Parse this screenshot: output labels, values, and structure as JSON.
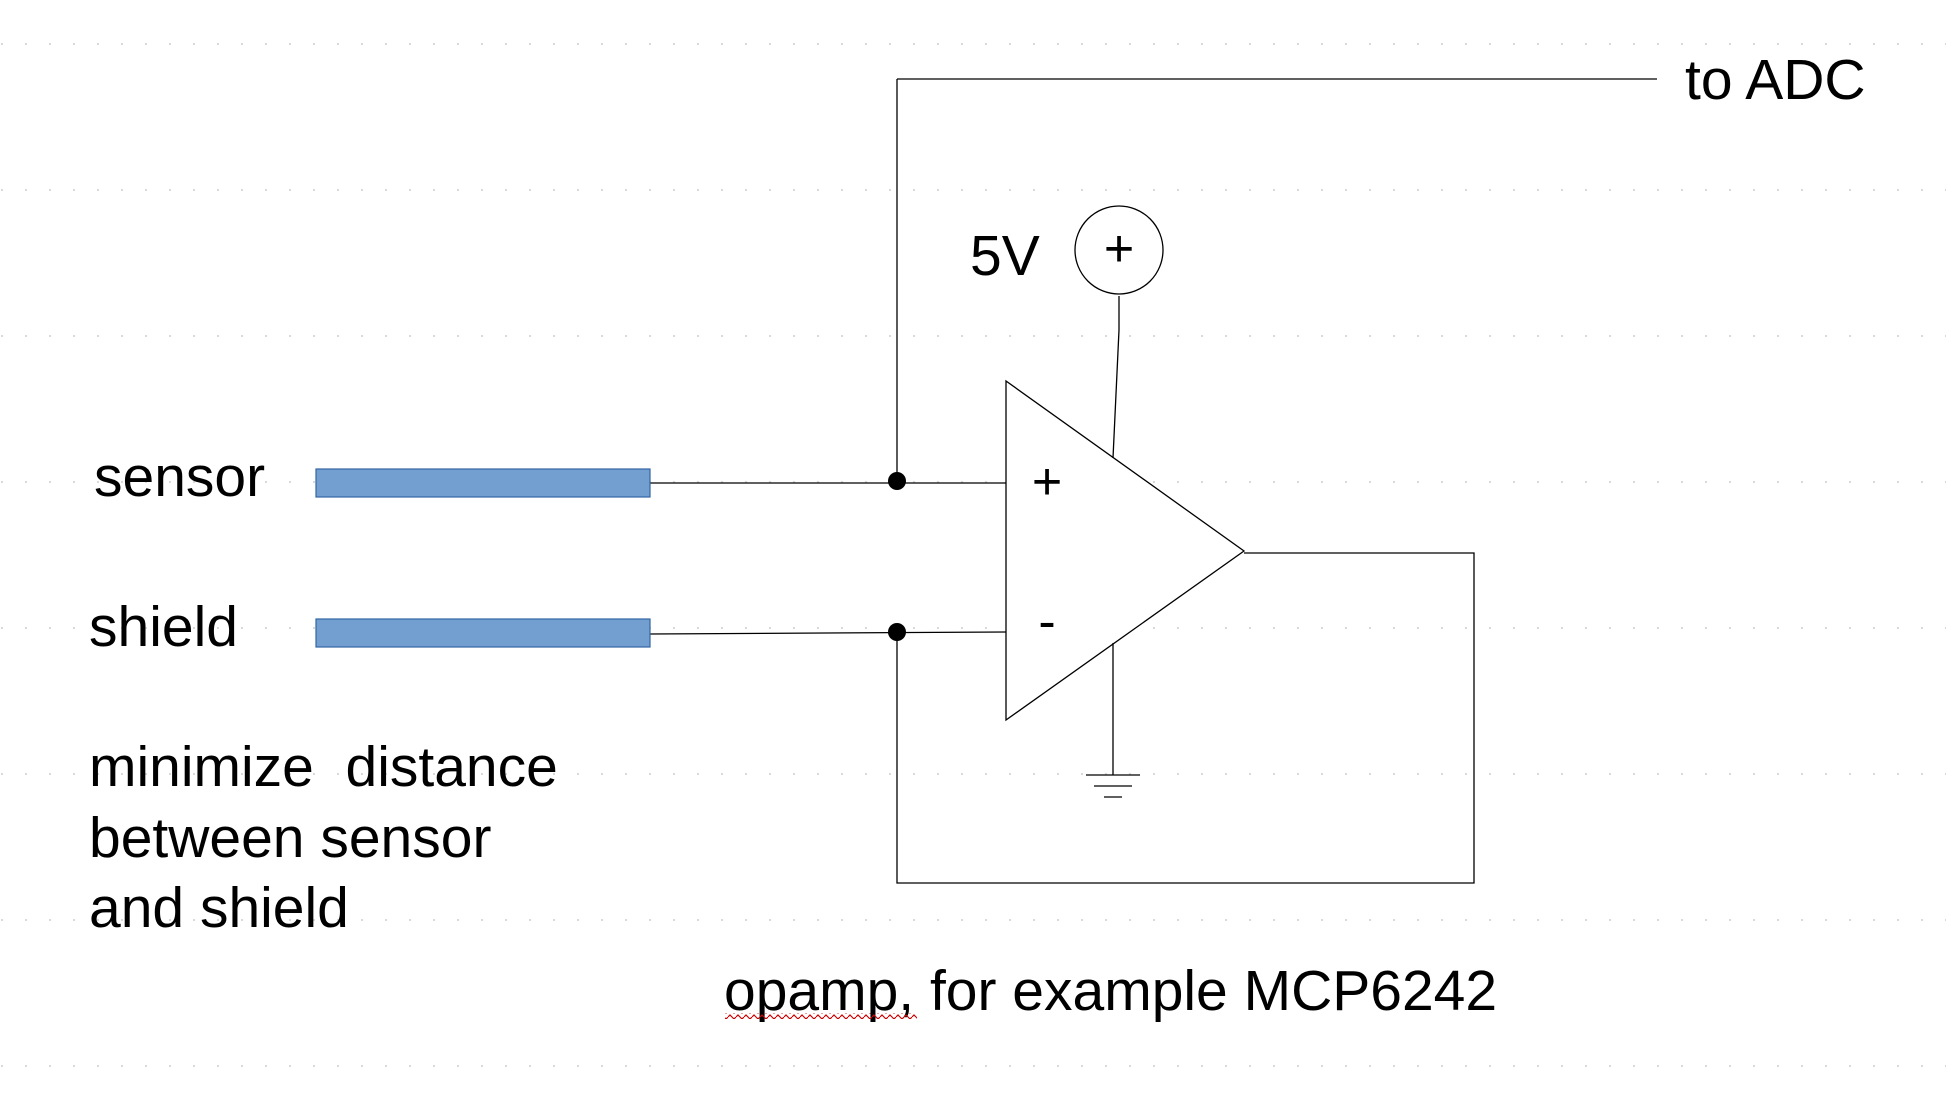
{
  "labels": {
    "to_adc": "to ADC",
    "supply_voltage": "5V",
    "supply_symbol": "+",
    "plus_input": "+",
    "minus_input": "-",
    "sensor": "sensor",
    "shield": "shield",
    "note_line1": "minimize  distance",
    "note_line2": "between sensor",
    "note_line3": "and shield",
    "opamp_caption": "opamp, for example MCP6242"
  },
  "colors": {
    "wire": "#000000",
    "electrode_fill": "#729fcf",
    "electrode_stroke": "#3465a4",
    "grid_dot": "#d9d9d9",
    "spellcheck_underline": "#cc0000"
  }
}
